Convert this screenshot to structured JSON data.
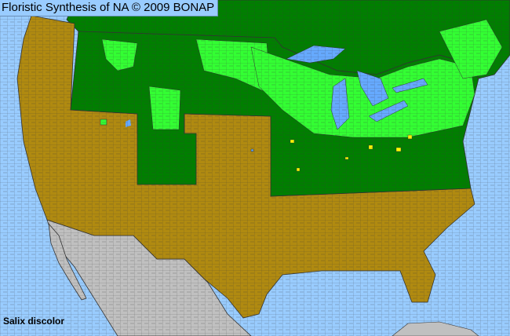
{
  "header": {
    "title": "Floristic Synthesis of NA © 2009 BONAP"
  },
  "map": {
    "species": "Salix discolor",
    "colors": {
      "ocean": "#99ccff",
      "native_state": "#007f00",
      "native_county": "#33ff33",
      "not_present": "#b08a10",
      "rare_or_noxious": "#ffff00",
      "outside_region": "#c0c0c0",
      "county_borders": "#3a3a3a"
    }
  }
}
